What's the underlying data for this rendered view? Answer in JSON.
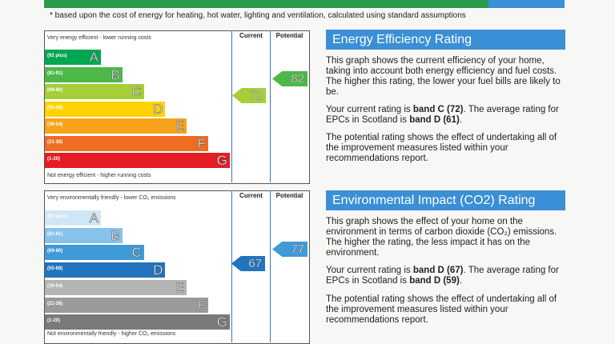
{
  "banner": {
    "footnote": "* based upon the cost of energy for heating, hot water, lighting and ventilation, calculated using standard assumptions"
  },
  "energy": {
    "top_label": "Very energy efficient - lower running costs",
    "bottom_label": "Not energy efficient - higher running costs",
    "columns": [
      "Current",
      "Potential"
    ],
    "bands": [
      {
        "range": "(92 plus)",
        "letter": "A",
        "color": "#00a651"
      },
      {
        "range": "(81-91)",
        "letter": "B",
        "color": "#4cb848"
      },
      {
        "range": "(69-80)",
        "letter": "C",
        "color": "#a6ce39"
      },
      {
        "range": "(55-68)",
        "letter": "D",
        "color": "#ffd200"
      },
      {
        "range": "(39-54)",
        "letter": "E",
        "color": "#f7a21b"
      },
      {
        "range": "(21-38)",
        "letter": "F",
        "color": "#ef6c23"
      },
      {
        "range": "(1-20)",
        "letter": "G",
        "color": "#e31d23"
      }
    ],
    "current": 72,
    "potential": 82
  },
  "energy_text": {
    "title": "Energy Efficiency Rating",
    "paragraphs": [
      [
        "This graph shows the current efficiency of your home, taking into account both energy efficiency and fuel costs. The higher this rating, the lower your fuel bills are likely to be."
      ],
      [
        "Your current rating is ",
        "band C (72)",
        ". The average rating for EPCs in Scotland is ",
        "band D (61)",
        "."
      ],
      [
        "The potential rating shows the effect of undertaking all of the improvement measures listed within your recommendations report."
      ]
    ]
  },
  "environment": {
    "top_label": "Very environmentally friendly - lower CO₂ emissions",
    "bottom_label": "Not environmentally friendly - higher CO₂ emissions",
    "columns": [
      "Current",
      "Potential"
    ],
    "bands": [
      {
        "range": "(92 plus)",
        "letter": "A",
        "color": "#cfe6f7"
      },
      {
        "range": "(81-91)",
        "letter": "B",
        "color": "#86c2ec"
      },
      {
        "range": "(69-80)",
        "letter": "C",
        "color": "#3f9ad8"
      },
      {
        "range": "(55-68)",
        "letter": "D",
        "color": "#2174bd"
      },
      {
        "range": "(39-54)",
        "letter": "E",
        "color": "#b4b4b4"
      },
      {
        "range": "(21-38)",
        "letter": "F",
        "color": "#9a9a9a"
      },
      {
        "range": "(1-20)",
        "letter": "G",
        "color": "#7a7a7a"
      }
    ],
    "current": 67,
    "potential": 77
  },
  "environment_text": {
    "title": "Environmental Impact (CO2) Rating",
    "paragraphs": [
      [
        "This graph shows the effect of your home on the environment in terms of carbon dioxide (CO₂) emissions. The higher the rating, the less impact it has on the environment."
      ],
      [
        "Your current rating is ",
        "band D (67)",
        ". The average rating for EPCs in Scotland is ",
        "band D (59)",
        "."
      ],
      [
        "The potential rating shows the effect of undertaking all of the improvement measures listed within your recommendations report."
      ]
    ]
  }
}
